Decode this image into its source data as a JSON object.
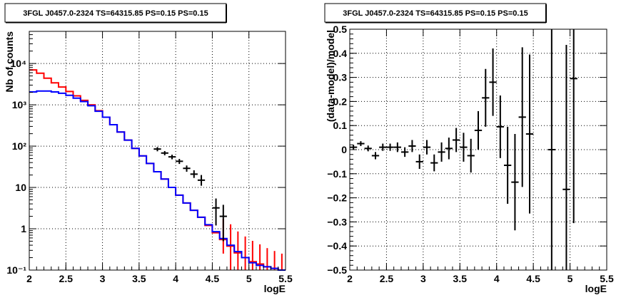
{
  "chart_data": [
    {
      "type": "line",
      "title": "3FGL J0457.0-2324 TS=64315.85 PS=0.15 PS=0.15",
      "xlabel": "logE",
      "ylabel": "Nb of counts",
      "xlim": [
        2,
        5.5
      ],
      "ylim": [
        0.1,
        60000
      ],
      "yscale": "log",
      "grid": true,
      "x_ticks": [
        "2",
        "2.5",
        "3",
        "3.5",
        "4",
        "4.5",
        "5",
        "5.5"
      ],
      "y_ticks": [
        "10⁻¹",
        "1",
        "10",
        "10²",
        "10³",
        "10⁴"
      ],
      "y_tick_values": [
        0.1,
        1,
        10,
        100,
        1000,
        10000
      ],
      "series": [
        {
          "color": "#ff0000",
          "kind": "histogram",
          "bin_width": 0.1,
          "x": [
            2.05,
            2.15,
            2.25,
            2.35,
            2.45,
            2.55,
            2.65,
            2.75,
            2.85,
            2.95,
            3.05,
            3.15,
            3.25,
            3.35,
            3.45,
            3.55,
            3.65,
            3.75,
            3.85,
            3.95,
            4.05,
            4.15,
            4.25,
            4.35,
            4.45,
            4.55,
            4.65,
            4.75,
            4.85,
            4.95,
            5.05,
            5.15,
            5.25,
            5.35,
            5.45
          ],
          "values": [
            7000,
            5800,
            4400,
            3400,
            2700,
            2100,
            1650,
            1280,
            1000,
            720,
            500,
            330,
            220,
            140,
            88,
            58,
            38,
            24,
            16,
            10,
            6.5,
            4.2,
            2.8,
            1.9,
            1.2,
            0.8,
            0.55,
            0.38,
            0.26,
            0.2,
            0.16,
            0.14,
            0.12,
            0.11,
            0.1
          ],
          "err_low": [
            0,
            0,
            0,
            0,
            0,
            0,
            0,
            0,
            0,
            0,
            0,
            0,
            0,
            0,
            0,
            0,
            0,
            0,
            0,
            0,
            0,
            0,
            0,
            0,
            0,
            0,
            0.3,
            0.3,
            0.2,
            0.18,
            0.15,
            0.13,
            0.11,
            0.1,
            0.09
          ],
          "err_high": [
            0,
            0,
            0,
            0,
            0,
            0,
            0,
            0,
            0,
            0,
            0,
            0,
            0,
            0,
            0,
            0,
            0,
            0,
            0,
            0,
            0,
            0,
            0,
            0,
            0,
            0,
            1.2,
            0.9,
            0.6,
            0.45,
            0.35,
            0.28,
            0.22,
            0.18,
            0.15
          ]
        },
        {
          "color": "#0000ff",
          "kind": "histogram",
          "bin_width": 0.1,
          "x": [
            2.05,
            2.15,
            2.25,
            2.35,
            2.45,
            2.55,
            2.65,
            2.75,
            2.85,
            2.95,
            3.05,
            3.15,
            3.25,
            3.35,
            3.45,
            3.55,
            3.65,
            3.75,
            3.85,
            3.95,
            4.05,
            4.15,
            4.25,
            4.35,
            4.45,
            4.55,
            4.65,
            4.75,
            4.85,
            4.95,
            5.05,
            5.15,
            5.25,
            5.35,
            5.45
          ],
          "values": [
            2050,
            2150,
            2150,
            2050,
            1900,
            1700,
            1450,
            1200,
            950,
            700,
            500,
            330,
            220,
            140,
            88,
            58,
            38,
            24,
            16,
            10,
            6.5,
            4.2,
            2.8,
            1.9,
            1.25,
            0.85,
            0.58,
            0.4,
            0.28,
            0.2,
            0.15,
            0.13,
            0.12,
            0.11,
            0.1
          ]
        },
        {
          "color": "#000000",
          "kind": "points",
          "x": [
            3.75,
            3.85,
            3.95,
            4.05,
            4.15,
            4.25,
            4.35,
            4.55,
            4.65
          ],
          "values": [
            85,
            68,
            55,
            43,
            29,
            21,
            15,
            3.2,
            2.0
          ],
          "err_low": [
            10,
            8,
            7,
            6,
            5,
            4,
            4,
            2.0,
            1.5
          ],
          "err_high": [
            10,
            8,
            7,
            6,
            5,
            5,
            5,
            2.2,
            1.8
          ]
        }
      ]
    },
    {
      "type": "scatter",
      "title": "3FGL J0457.0-2324 TS=64315.85 PS=0.15 PS=0.15",
      "xlabel": "logE",
      "ylabel": "(data-model)/model",
      "xlim": [
        2,
        5.5
      ],
      "ylim": [
        -0.5,
        0.5
      ],
      "grid": true,
      "x_ticks": [
        "2",
        "2.5",
        "3",
        "3.5",
        "4",
        "4.5",
        "5",
        "5.5"
      ],
      "y_ticks": [
        "−0.5",
        "−0.4",
        "−0.3",
        "−0.2",
        "−0.1",
        "0",
        "0.1",
        "0.2",
        "0.3",
        "0.4",
        "0.5"
      ],
      "y_tick_values": [
        -0.5,
        -0.4,
        -0.3,
        -0.2,
        -0.1,
        0,
        0.1,
        0.2,
        0.3,
        0.4,
        0.5
      ],
      "series": [
        {
          "color": "#000000",
          "x": [
            2.05,
            2.15,
            2.25,
            2.35,
            2.45,
            2.55,
            2.65,
            2.75,
            2.85,
            2.95,
            3.05,
            3.15,
            3.25,
            3.35,
            3.45,
            3.55,
            3.65,
            3.75,
            3.85,
            3.95,
            4.05,
            4.15,
            4.25,
            4.35,
            4.45,
            4.75,
            4.95,
            5.05
          ],
          "values": [
            0.01,
            0.025,
            0.005,
            -0.025,
            0.01,
            0.01,
            0.01,
            -0.01,
            0.015,
            -0.05,
            0.01,
            -0.055,
            -0.01,
            0.005,
            0.04,
            0.01,
            -0.025,
            0.08,
            0.215,
            0.28,
            0.095,
            -0.065,
            -0.135,
            0.135,
            0.065,
            0.0,
            -0.165,
            0.295
          ],
          "err": [
            0.01,
            0.01,
            0.012,
            0.015,
            0.015,
            0.015,
            0.02,
            0.02,
            0.025,
            0.03,
            0.03,
            0.035,
            0.04,
            0.045,
            0.05,
            0.06,
            0.07,
            0.08,
            0.12,
            0.14,
            0.13,
            0.16,
            0.2,
            0.29,
            0.33,
            0.6,
            0.6,
            0.6
          ]
        }
      ]
    }
  ]
}
